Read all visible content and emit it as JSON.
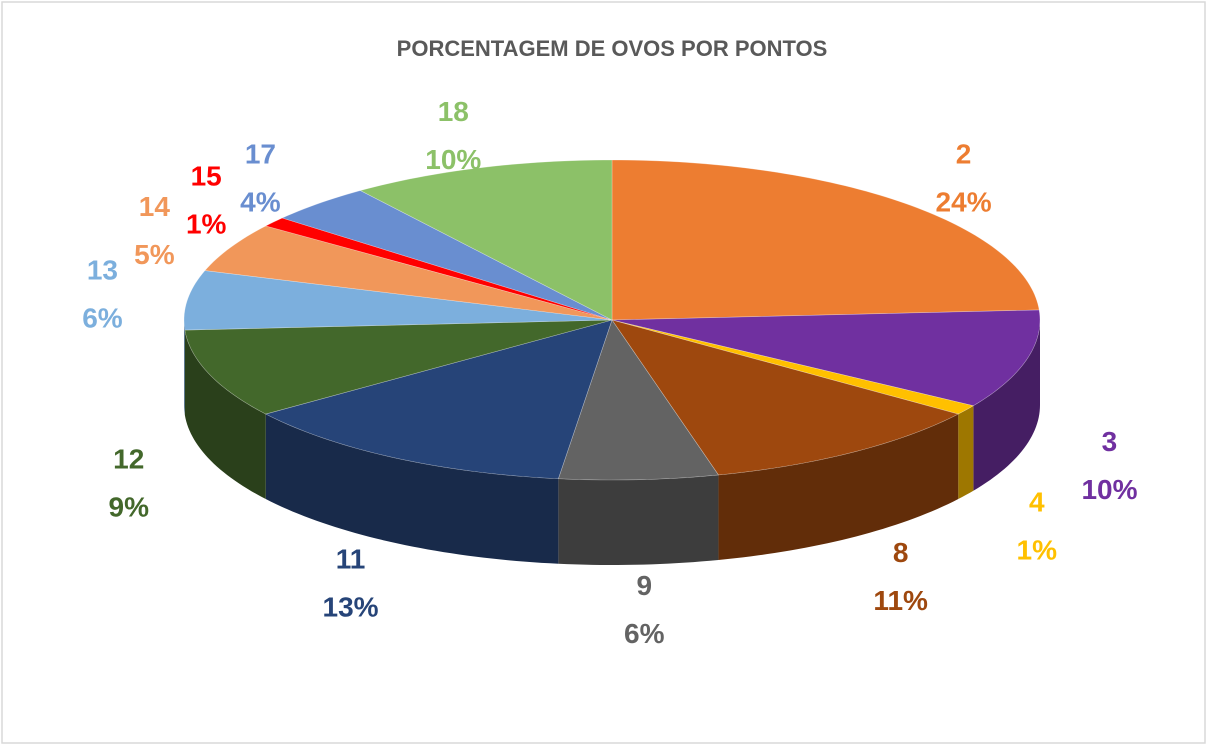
{
  "chart_data": {
    "type": "pie",
    "title": "PORCENTAGEM DE OVOS POR PONTOS",
    "categories": [
      "2",
      "3",
      "4",
      "8",
      "9",
      "11",
      "12",
      "13",
      "14",
      "15",
      "17",
      "18"
    ],
    "values": [
      24,
      10,
      1,
      11,
      6,
      13,
      9,
      6,
      5,
      1,
      4,
      10
    ],
    "value_labels": [
      "24%",
      "10%",
      "1%",
      "11%",
      "6%",
      "13%",
      "9%",
      "6%",
      "5%",
      "1%",
      "4%",
      "10%"
    ],
    "colors": [
      "#ED7D31",
      "#7030A0",
      "#FFC000",
      "#9E480E",
      "#636363",
      "#264478",
      "#43682B",
      "#7CAFDD",
      "#F1975A",
      "#FF0000",
      "#698ED0",
      "#8CC168"
    ]
  }
}
